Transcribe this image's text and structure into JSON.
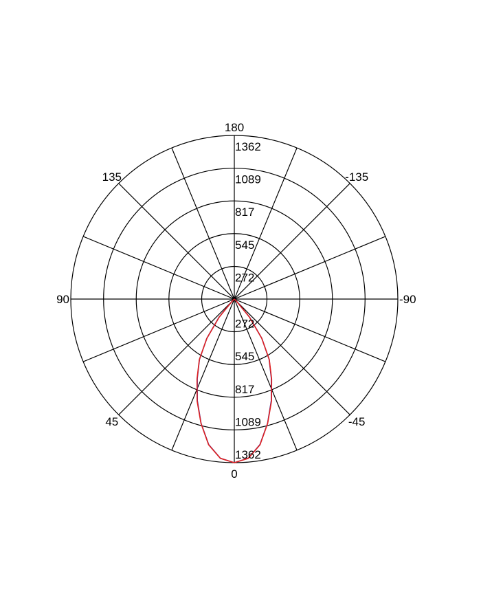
{
  "chart_data": {
    "type": "polar",
    "title": "",
    "angle_labels": [
      {
        "angle": 180,
        "text": "180"
      },
      {
        "angle": 135,
        "text": "135"
      },
      {
        "angle": -135,
        "text": "-135"
      },
      {
        "angle": 90,
        "text": "90"
      },
      {
        "angle": -90,
        "text": "-90"
      },
      {
        "angle": 45,
        "text": "45"
      },
      {
        "angle": -45,
        "text": "-45"
      },
      {
        "angle": 0,
        "text": "0"
      }
    ],
    "spoke_step_deg": 22.5,
    "radial_ticks": [
      272,
      545,
      817,
      1089,
      1362
    ],
    "radial_tick_labels": [
      "272",
      "545",
      "817",
      "1089",
      "1362"
    ],
    "rmax": 1362,
    "grid": true,
    "series": [
      {
        "color": "#3030a0",
        "angles": [
          -50,
          -45,
          -40,
          -35,
          -30,
          -25,
          -20,
          -15,
          -10,
          -5,
          0,
          5,
          10,
          15,
          20,
          25,
          30,
          35,
          40,
          45,
          50
        ],
        "values": [
          0,
          30,
          200,
          400,
          580,
          730,
          900,
          1070,
          1230,
          1330,
          1362,
          1330,
          1230,
          1070,
          900,
          730,
          580,
          400,
          200,
          30,
          0
        ]
      },
      {
        "color": "#e02020",
        "angles": [
          -50,
          -45,
          -40,
          -35,
          -30,
          -25,
          -20,
          -15,
          -10,
          -5,
          0,
          5,
          10,
          15,
          20,
          25,
          30,
          35,
          40,
          45,
          50
        ],
        "values": [
          0,
          25,
          195,
          398,
          582,
          735,
          905,
          1072,
          1232,
          1331,
          1362,
          1331,
          1232,
          1072,
          905,
          735,
          582,
          398,
          195,
          25,
          0
        ]
      }
    ]
  }
}
